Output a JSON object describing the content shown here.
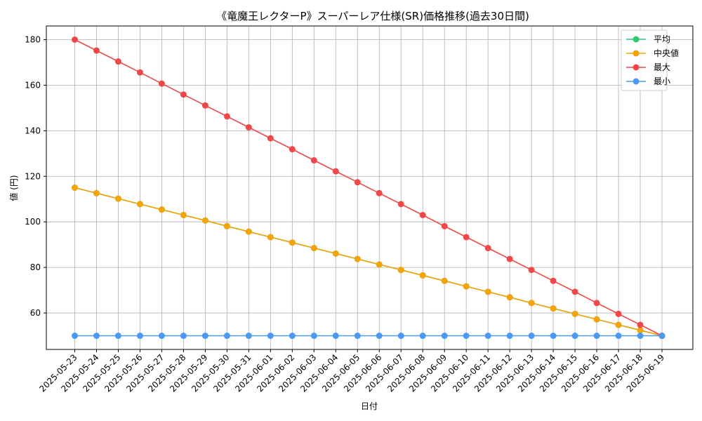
{
  "chart_data": {
    "type": "line",
    "title": "《竜魔王レクターP》スーパーレア仕様(SR)価格推移(過去30日間)",
    "xlabel": "日付",
    "ylabel": "値 (円)",
    "ylim": [
      44,
      186
    ],
    "yticks": [
      60,
      80,
      100,
      120,
      140,
      160,
      180
    ],
    "grid": true,
    "legend_position": "top-right",
    "categories": [
      "2025-05-23",
      "2025-05-24",
      "2025-05-25",
      "2025-05-26",
      "2025-05-27",
      "2025-05-28",
      "2025-05-29",
      "2025-05-30",
      "2025-05-31",
      "2025-06-01",
      "2025-06-02",
      "2025-06-03",
      "2025-06-04",
      "2025-06-05",
      "2025-06-06",
      "2025-06-07",
      "2025-06-08",
      "2025-06-09",
      "2025-06-10",
      "2025-06-11",
      "2025-06-12",
      "2025-06-13",
      "2025-06-14",
      "2025-06-15",
      "2025-06-16",
      "2025-06-17",
      "2025-06-18",
      "2025-06-19"
    ],
    "series": [
      {
        "name": "平均",
        "color": "#2ecc71",
        "values": [
          115,
          112.6,
          110.2,
          107.8,
          105.4,
          103,
          100.6,
          98.1,
          95.7,
          93.3,
          90.9,
          88.5,
          86.1,
          83.7,
          81.3,
          78.9,
          76.5,
          74.1,
          71.7,
          69.3,
          66.9,
          64.4,
          62,
          59.6,
          57.2,
          54.8,
          52.4,
          50
        ]
      },
      {
        "name": "中央値",
        "color": "#f5a30a",
        "values": [
          115,
          112.6,
          110.2,
          107.8,
          105.4,
          103,
          100.6,
          98.1,
          95.7,
          93.3,
          90.9,
          88.5,
          86.1,
          83.7,
          81.3,
          78.9,
          76.5,
          74.1,
          71.7,
          69.3,
          66.9,
          64.4,
          62,
          59.6,
          57.2,
          54.8,
          52.4,
          50
        ]
      },
      {
        "name": "最大",
        "color": "#f04848",
        "values": [
          180,
          175.2,
          170.4,
          165.6,
          160.7,
          155.9,
          151.1,
          146.3,
          141.5,
          136.7,
          131.9,
          127,
          122.2,
          117.4,
          112.6,
          107.8,
          103,
          98.1,
          93.3,
          88.5,
          83.7,
          78.9,
          74.1,
          69.3,
          64.4,
          59.6,
          54.8,
          50
        ]
      },
      {
        "name": "最小",
        "color": "#4a9af5",
        "values": [
          50,
          50,
          50,
          50,
          50,
          50,
          50,
          50,
          50,
          50,
          50,
          50,
          50,
          50,
          50,
          50,
          50,
          50,
          50,
          50,
          50,
          50,
          50,
          50,
          50,
          50,
          50,
          50
        ]
      }
    ]
  }
}
